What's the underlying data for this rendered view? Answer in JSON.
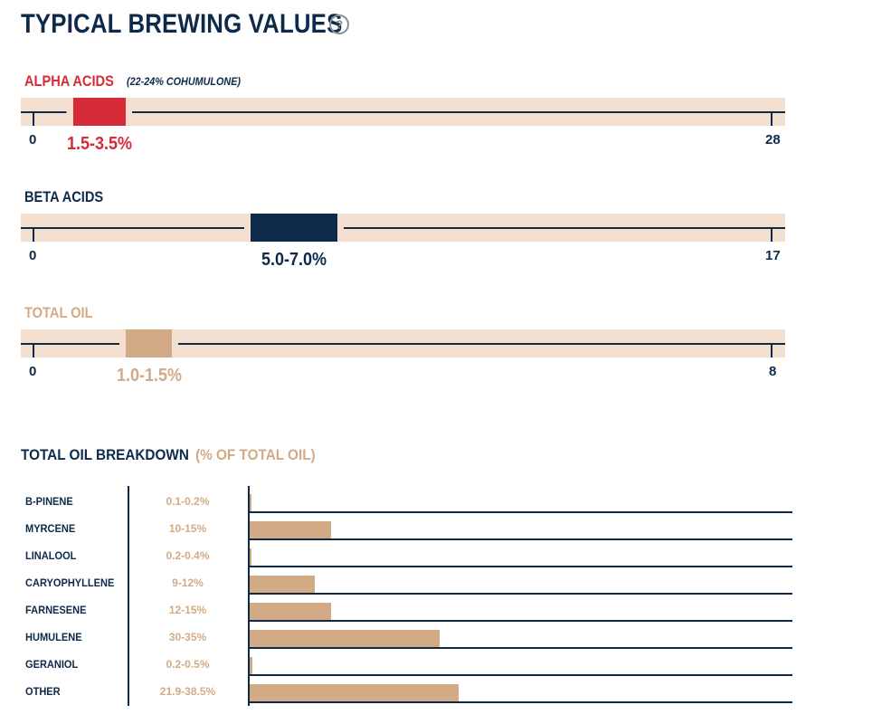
{
  "title": "TYPICAL BREWING VALUES",
  "help_icon": "question-circle-icon",
  "colors": {
    "navy": "#0d2a4a",
    "red": "#d52b37",
    "tan": "#d2aa86",
    "band": "#f2dfd0"
  },
  "ranges": [
    {
      "name": "ALPHA ACIDS",
      "note": "(22-24% COHUMULONE)",
      "min": "0",
      "max": "28",
      "value": "1.5-3.5%",
      "low": 1.5,
      "high": 3.5,
      "scale_max": 28,
      "color": "#d52b37"
    },
    {
      "name": "BETA ACIDS",
      "note": "",
      "min": "0",
      "max": "17",
      "value": "5.0-7.0%",
      "low": 5.0,
      "high": 7.0,
      "scale_max": 17,
      "color": "#0d2a4a"
    },
    {
      "name": "TOTAL OIL",
      "note": "",
      "min": "0",
      "max": "8",
      "value": "1.0-1.5%",
      "low": 1.0,
      "high": 1.5,
      "scale_max": 8,
      "color": "#d2aa86"
    }
  ],
  "breakdown": {
    "title": "TOTAL OIL BREAKDOWN",
    "subtitle": "(% OF TOTAL OIL)",
    "rows": [
      {
        "name": "B-PINENE",
        "value": "0.1-0.2%",
        "fill_pct": 0.2
      },
      {
        "name": "MYRCENE",
        "value": "10-15%",
        "fill_pct": 15
      },
      {
        "name": "LINALOOL",
        "value": "0.2-0.4%",
        "fill_pct": 0.4
      },
      {
        "name": "CARYOPHYLLENE",
        "value": "9-12%",
        "fill_pct": 12
      },
      {
        "name": "FARNESENE",
        "value": "12-15%",
        "fill_pct": 15
      },
      {
        "name": "HUMULENE",
        "value": "30-35%",
        "fill_pct": 35
      },
      {
        "name": "GERANIOL",
        "value": "0.2-0.5%",
        "fill_pct": 0.5
      },
      {
        "name": "OTHER",
        "value": "21.9-38.5%",
        "fill_pct": 38.5
      }
    ]
  }
}
